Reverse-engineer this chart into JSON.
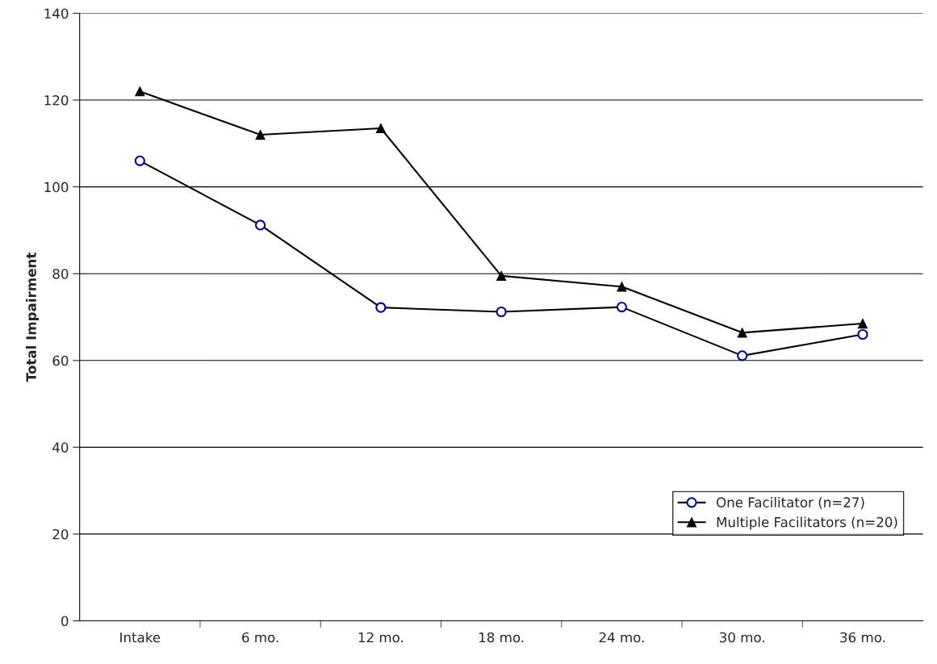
{
  "chart_data": {
    "type": "line",
    "ylabel": "Total Impairment",
    "categories": [
      "Intake",
      "6 mo.",
      "12 mo.",
      "18 mo.",
      "24 mo.",
      "30 mo.",
      "36 mo."
    ],
    "series": [
      {
        "name": "One Facilitator (n=27)",
        "color": "#000000",
        "marker": "circle",
        "values": [
          106,
          91.2,
          72.2,
          71.2,
          72.3,
          61.1,
          66
        ]
      },
      {
        "name": "Multiple Facilitators (n=20)",
        "color": "#000000",
        "marker": "triangle",
        "values": [
          122,
          112,
          113.5,
          79.5,
          77,
          66.4,
          68.5
        ]
      }
    ],
    "ylim": [
      0,
      140
    ],
    "yticks": [
      0,
      20,
      40,
      60,
      80,
      100,
      120,
      140
    ],
    "grid": "y",
    "legend": "bottom right"
  }
}
